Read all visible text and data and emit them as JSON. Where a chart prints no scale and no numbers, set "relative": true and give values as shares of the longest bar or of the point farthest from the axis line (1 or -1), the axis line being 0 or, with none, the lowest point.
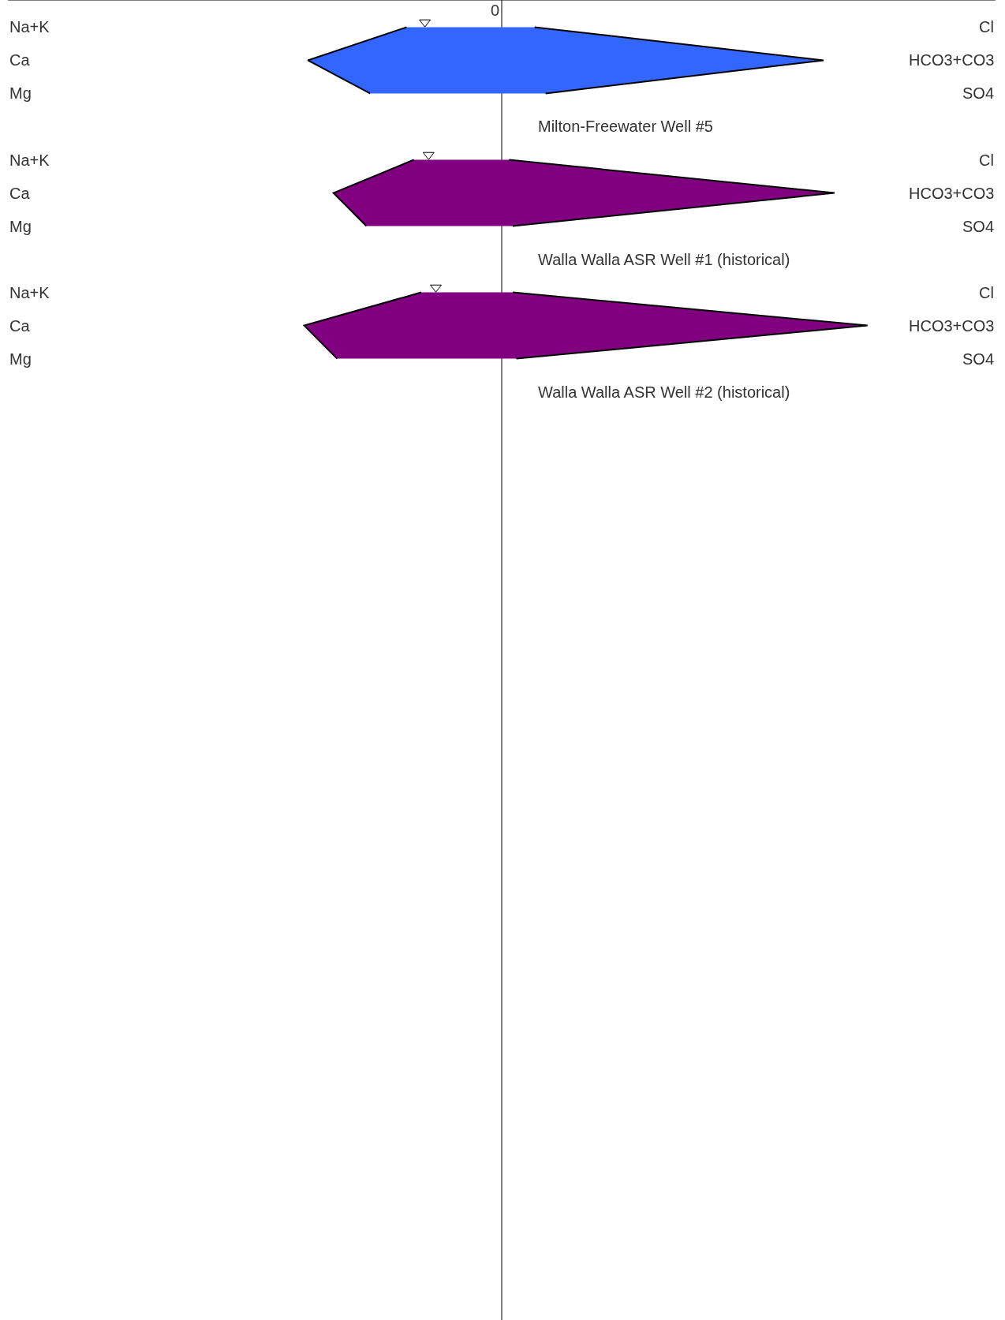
{
  "chart_data": {
    "type": "area",
    "orientation": "horizontal",
    "relative": true,
    "categories": [
      "Na+K",
      "Ca",
      "Mg",
      null,
      "Na+K",
      "Ca",
      "Mg",
      null,
      "Na+K",
      "Ca",
      "Mg",
      null
    ],
    "y2_categories": [
      "Cl",
      "HCO3+CO3",
      "SO4",
      null,
      "Cl",
      "HCO3+CO3",
      "SO4",
      null,
      "Cl",
      "HCO3+CO3",
      "SO4",
      null
    ],
    "series": [
      {
        "color": "#3366ff",
        "values": [
          -0.26,
          -0.53,
          -0.36,
          null,
          null,
          null,
          null,
          null,
          null,
          null,
          null,
          null
        ]
      },
      {
        "color": "#3366ff",
        "values": [
          0.09,
          0.88,
          0.12,
          null,
          null,
          null,
          null,
          null,
          null,
          null,
          null,
          null
        ]
      },
      {
        "color": "#800080",
        "values": [
          null,
          null,
          null,
          null,
          -0.24,
          -0.46,
          -0.37,
          null,
          null,
          null,
          null,
          null
        ]
      },
      {
        "color": "#800080",
        "values": [
          null,
          null,
          null,
          null,
          0.02,
          0.91,
          0.03,
          null,
          null,
          null,
          null,
          null
        ]
      },
      {
        "color": "#800080",
        "values": [
          null,
          null,
          null,
          null,
          null,
          null,
          null,
          null,
          -0.22,
          -0.54,
          -0.45,
          null
        ]
      },
      {
        "color": "#800080",
        "values": [
          null,
          null,
          null,
          null,
          null,
          null,
          null,
          null,
          0.03,
          1.0,
          0.04,
          null
        ]
      },
      {
        "type": "scatter",
        "marker": "triangle",
        "color": "#000000",
        "values": [
          -0.21,
          null,
          null,
          null,
          -0.2,
          null,
          null,
          null,
          -0.18,
          null,
          null,
          null
        ]
      }
    ],
    "annotations": [
      "Milton-Freewater Well #5",
      "Walla Walla ASR Well #1 (historical)",
      "Walla Walla ASR Well #2 (historical)"
    ],
    "ref_lines": [
      {
        "axis": "x",
        "value": 0,
        "label": "0"
      }
    ]
  }
}
